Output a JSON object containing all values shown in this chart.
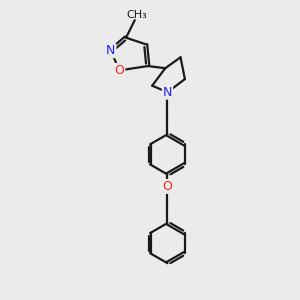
{
  "bg_color": "#ebebeb",
  "bond_color": "#1a1a1a",
  "bond_width": 1.6,
  "atom_colors": {
    "N": "#2020ff",
    "O": "#ff2020"
  },
  "xlim": [
    0,
    10
  ],
  "ylim": [
    0,
    13.5
  ]
}
